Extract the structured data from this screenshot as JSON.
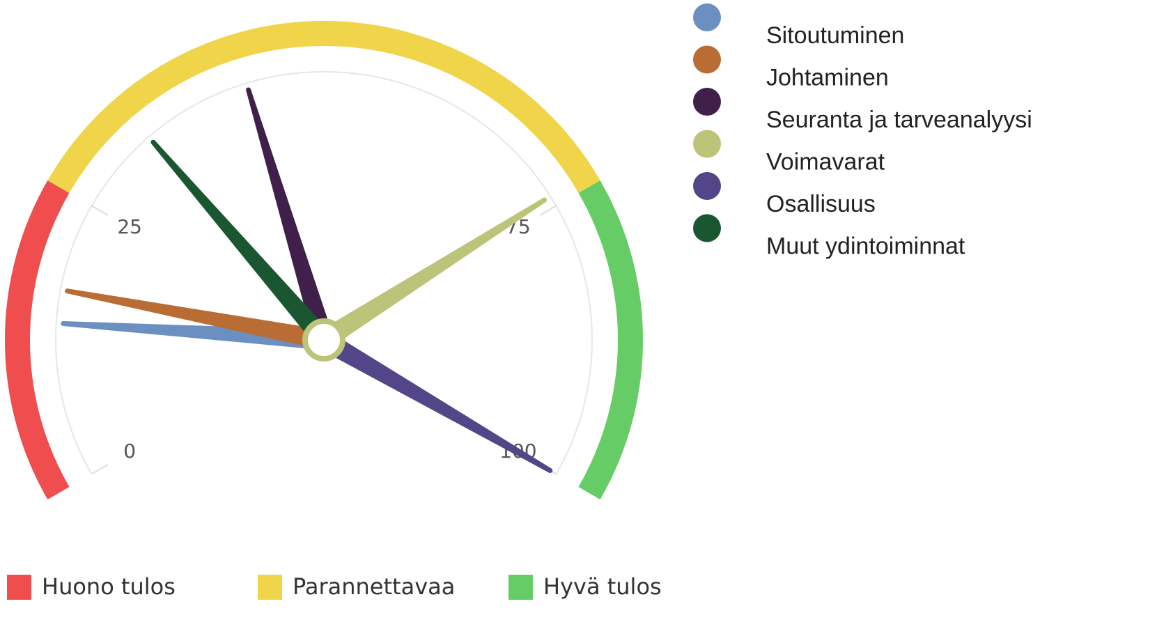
{
  "chart_data": {
    "type": "gauge",
    "ylim": [
      0,
      100
    ],
    "yticks": [
      0,
      25,
      75,
      100
    ],
    "bands": [
      {
        "name": "Huono tulos",
        "color": "#f04e4e",
        "from": 0,
        "to": 25
      },
      {
        "name": "Parannettavaa",
        "color": "#f0d54a",
        "from": 25,
        "to": 75
      },
      {
        "name": "Hyvä tulos",
        "color": "#66cc66",
        "from": 75,
        "to": 100
      }
    ],
    "series": [
      {
        "name": "Sitoutuminen",
        "color": "#6b8fc0",
        "values": [
          14
        ]
      },
      {
        "name": "Johtaminen",
        "color": "#b96d35",
        "values": [
          17
        ]
      },
      {
        "name": "Seuranta ja tarveanalyysi",
        "color": "#40204a",
        "values": [
          43
        ]
      },
      {
        "name": "Voimavarat",
        "color": "#bcc47a",
        "values": [
          74
        ]
      },
      {
        "name": "Osallisuus",
        "color": "#524689",
        "values": [
          100
        ]
      },
      {
        "name": "Muut ydintoiminnat",
        "color": "#1a5630",
        "values": [
          33
        ]
      }
    ]
  }
}
